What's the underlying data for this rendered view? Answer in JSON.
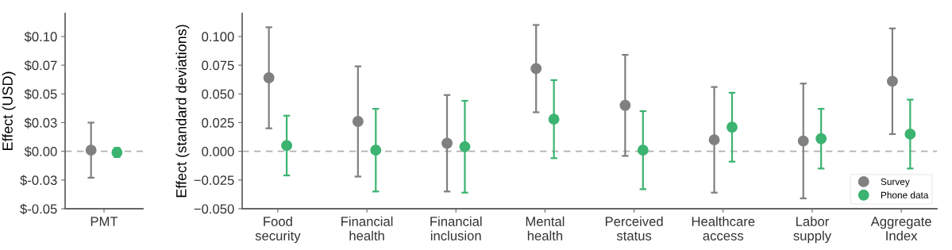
{
  "chart_data": [
    {
      "type": "scatter",
      "ylabel": "Effect (USD)",
      "categories": [
        "PMT"
      ],
      "ylim": [
        -0.05,
        0.12
      ],
      "yticks": [
        {
          "value": -0.05,
          "label": "$-0.05"
        },
        {
          "value": -0.025,
          "label": "$-0.03"
        },
        {
          "value": 0,
          "label": "$0.00"
        },
        {
          "value": 0.025,
          "label": "$0.03"
        },
        {
          "value": 0.05,
          "label": "$0.05"
        },
        {
          "value": 0.075,
          "label": "$0.07"
        },
        {
          "value": 0.1,
          "label": "$0.10"
        }
      ],
      "marker": "circle",
      "grid": false,
      "legend": false,
      "ref_lines": [
        {
          "axis": "y",
          "value": 0,
          "color": "#b0b0b0",
          "line_style": "dashed"
        }
      ],
      "series": [
        {
          "color": "#808080",
          "values": [
            0.001
          ],
          "errors": [
            [
              -0.023,
              0.025
            ]
          ]
        },
        {
          "color": "#3cb371",
          "values": [
            -0.001
          ],
          "errors": [
            [
              -0.005,
              0.003
            ]
          ]
        }
      ]
    },
    {
      "type": "scatter",
      "ylabel": "Effect (standard deviations)",
      "categories": [
        "Food\nsecurity",
        "Financial\nhealth",
        "Financial\ninclusion",
        "Mental\nhealth",
        "Perceived\nstatus",
        "Healthcare\naccess",
        "Labor\nsupply",
        "Aggregate\nIndex"
      ],
      "ylim": [
        -0.05,
        0.12
      ],
      "yticks": [
        {
          "value": -0.05,
          "label": "−0.050"
        },
        {
          "value": -0.025,
          "label": "−0.025"
        },
        {
          "value": 0,
          "label": "0.000"
        },
        {
          "value": 0.025,
          "label": "0.025"
        },
        {
          "value": 0.05,
          "label": "0.050"
        },
        {
          "value": 0.075,
          "label": "0.075"
        },
        {
          "value": 0.1,
          "label": "0.100"
        }
      ],
      "marker": "circle",
      "grid": false,
      "legend": "bottom right",
      "ref_lines": [
        {
          "axis": "y",
          "value": 0,
          "color": "#b0b0b0",
          "line_style": "dashed"
        }
      ],
      "series": [
        {
          "name": "Survey",
          "color": "#808080",
          "values": [
            0.064,
            0.026,
            0.007,
            0.072,
            0.04,
            0.01,
            0.009,
            0.061
          ],
          "errors": [
            [
              0.02,
              0.108
            ],
            [
              -0.022,
              0.074
            ],
            [
              -0.035,
              0.049
            ],
            [
              0.034,
              0.11
            ],
            [
              -0.004,
              0.084
            ],
            [
              -0.036,
              0.056
            ],
            [
              -0.041,
              0.059
            ],
            [
              0.015,
              0.107
            ]
          ]
        },
        {
          "name": "Phone data",
          "color": "#3cb371",
          "values": [
            0.005,
            0.001,
            0.004,
            0.028,
            0.001,
            0.021,
            0.011,
            0.015
          ],
          "errors": [
            [
              -0.021,
              0.031
            ],
            [
              -0.035,
              0.037
            ],
            [
              -0.036,
              0.044
            ],
            [
              -0.006,
              0.062
            ],
            [
              -0.033,
              0.035
            ],
            [
              -0.009,
              0.051
            ],
            [
              -0.015,
              0.037
            ],
            [
              -0.015,
              0.045
            ]
          ]
        }
      ]
    }
  ]
}
